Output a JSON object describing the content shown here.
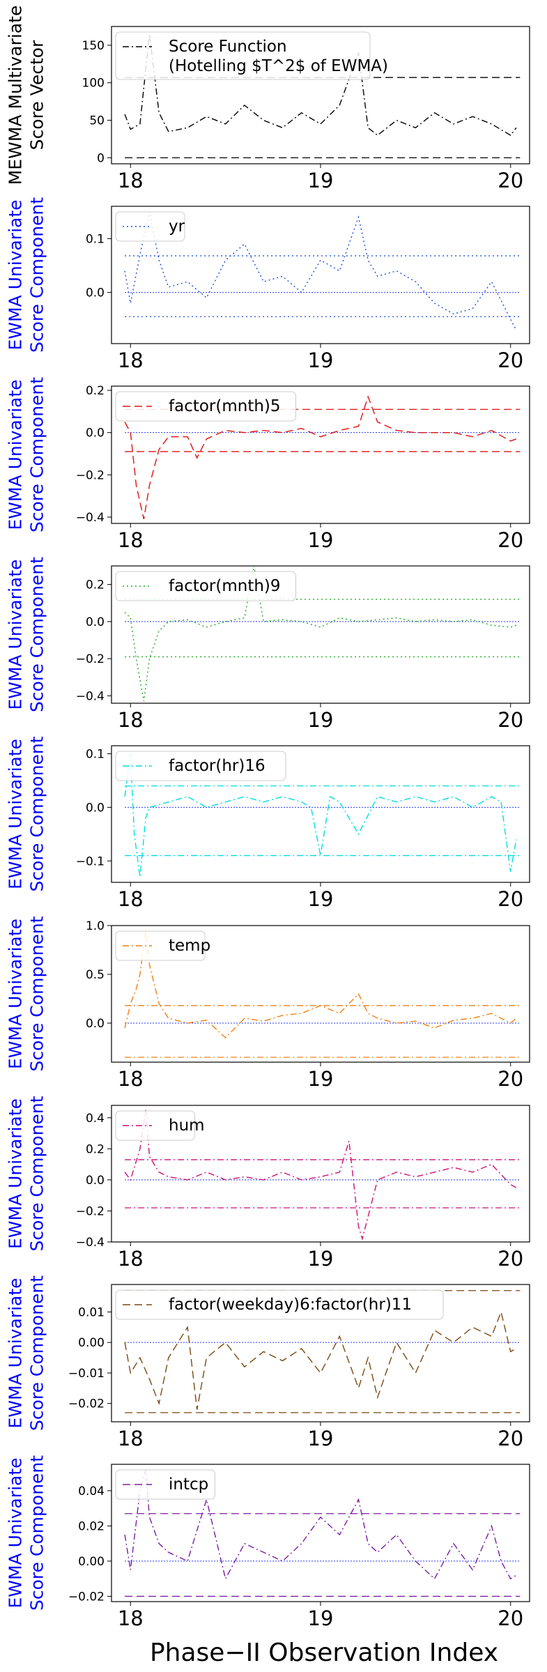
{
  "figure": {
    "xlabel": "Phase-II Observation Index",
    "x_ticks": [
      18,
      19,
      20
    ]
  },
  "chart_data": [
    {
      "type": "line",
      "ylabel": [
        "MEWMA Multivariate",
        "Score Vector"
      ],
      "ylabel_color": "#000000",
      "ylim": [
        -8,
        175
      ],
      "y_ticks": [
        0,
        50,
        100,
        150
      ],
      "y_tick_labels": [
        "0",
        "50",
        "100",
        "150"
      ],
      "legend": {
        "labels": [
          "Score Function",
          "(Hotelling $T^2$ of EWMA)"
        ],
        "placement": "top-left",
        "style": "dashdot"
      },
      "color": "#000000",
      "style": "dashdot",
      "limits": {
        "upper": 107,
        "center": null,
        "lower": 0,
        "style": "dashed"
      },
      "series": {
        "x": [
          17.97,
          18.0,
          18.05,
          18.1,
          18.15,
          18.2,
          18.3,
          18.4,
          18.5,
          18.6,
          18.7,
          18.8,
          18.9,
          19.0,
          19.1,
          19.2,
          19.25,
          19.3,
          19.4,
          19.5,
          19.6,
          19.7,
          19.8,
          19.9,
          20.0,
          20.03
        ],
        "y": [
          58,
          38,
          45,
          165,
          60,
          35,
          40,
          55,
          45,
          70,
          50,
          40,
          60,
          45,
          70,
          140,
          40,
          30,
          50,
          40,
          60,
          45,
          55,
          45,
          30,
          40
        ]
      }
    },
    {
      "type": "line",
      "ylabel": [
        "EWMA Univariate",
        "Score Component"
      ],
      "ylabel_color": "#0000ff",
      "ylim": [
        -0.095,
        0.16
      ],
      "y_ticks": [
        0.0,
        0.1
      ],
      "y_tick_labels": [
        "0.0",
        "0.1"
      ],
      "legend": {
        "labels": [
          "yr"
        ],
        "placement": "top-left",
        "style": "dotted"
      },
      "color": "#1f4fd8",
      "style": "dotted",
      "limits": {
        "upper": 0.068,
        "center": 0.0,
        "lower": -0.045,
        "style": "dotted"
      },
      "series": {
        "x": [
          17.97,
          18.0,
          18.05,
          18.1,
          18.15,
          18.2,
          18.3,
          18.4,
          18.5,
          18.6,
          18.7,
          18.8,
          18.9,
          19.0,
          19.1,
          19.2,
          19.25,
          19.3,
          19.4,
          19.5,
          19.6,
          19.7,
          19.8,
          19.9,
          20.0,
          20.03
        ],
        "y": [
          0.04,
          -0.02,
          0.07,
          0.15,
          0.06,
          0.01,
          0.02,
          -0.01,
          0.06,
          0.09,
          0.02,
          0.03,
          0.0,
          0.06,
          0.04,
          0.14,
          0.06,
          0.03,
          0.04,
          0.02,
          -0.02,
          -0.04,
          -0.03,
          0.02,
          -0.05,
          -0.07
        ]
      }
    },
    {
      "type": "line",
      "ylabel": [
        "EWMA Univariate",
        "Score Component"
      ],
      "ylabel_color": "#0000ff",
      "ylim": [
        -0.43,
        0.22
      ],
      "y_ticks": [
        -0.4,
        -0.2,
        0.0,
        0.2
      ],
      "y_tick_labels": [
        "−0.4",
        "−0.2",
        "0.0",
        "0.2"
      ],
      "legend": {
        "labels": [
          "factor(mnth)5"
        ],
        "placement": "top-left",
        "style": "dashed"
      },
      "color": "#e01010",
      "style": "dashed",
      "limits": {
        "upper": 0.11,
        "center": 0.0,
        "lower": -0.09,
        "style": "dashed"
      },
      "series": {
        "x": [
          17.97,
          18.0,
          18.03,
          18.07,
          18.1,
          18.15,
          18.2,
          18.3,
          18.35,
          18.4,
          18.5,
          18.6,
          18.7,
          18.8,
          18.9,
          19.0,
          19.1,
          19.2,
          19.25,
          19.3,
          19.4,
          19.5,
          19.6,
          19.7,
          19.8,
          19.9,
          20.0,
          20.03
        ],
        "y": [
          0.05,
          0.0,
          -0.25,
          -0.41,
          -0.25,
          -0.08,
          -0.02,
          -0.02,
          -0.12,
          -0.03,
          0.01,
          0.0,
          0.01,
          0.0,
          0.02,
          -0.02,
          0.01,
          0.03,
          0.17,
          0.05,
          0.01,
          0.0,
          0.0,
          0.0,
          -0.02,
          0.01,
          -0.04,
          -0.03
        ]
      }
    },
    {
      "type": "line",
      "ylabel": [
        "EWMA Univariate",
        "Score Component"
      ],
      "ylabel_color": "#0000ff",
      "ylim": [
        -0.44,
        0.3
      ],
      "y_ticks": [
        -0.4,
        -0.2,
        0.0,
        0.2
      ],
      "y_tick_labels": [
        "−0.4",
        "−0.2",
        "0.0",
        "0.2"
      ],
      "legend": {
        "labels": [
          "factor(mnth)9"
        ],
        "placement": "top-left",
        "style": "dotted"
      },
      "color": "#22aa22",
      "style": "dotted",
      "limits": {
        "upper": 0.12,
        "center": 0.0,
        "lower": -0.19,
        "style": "dotted"
      },
      "series": {
        "x": [
          17.97,
          18.0,
          18.03,
          18.07,
          18.1,
          18.15,
          18.2,
          18.3,
          18.4,
          18.5,
          18.6,
          18.65,
          18.7,
          18.8,
          18.9,
          19.0,
          19.1,
          19.2,
          19.3,
          19.4,
          19.5,
          19.6,
          19.7,
          19.8,
          19.9,
          20.0,
          20.03
        ],
        "y": [
          0.05,
          0.02,
          -0.2,
          -0.43,
          -0.2,
          -0.05,
          0.0,
          0.01,
          -0.03,
          0.0,
          0.02,
          0.3,
          0.0,
          0.01,
          0.0,
          -0.03,
          0.02,
          0.0,
          0.01,
          0.02,
          0.0,
          0.01,
          0.0,
          0.01,
          -0.02,
          -0.03,
          -0.02
        ]
      }
    },
    {
      "type": "line",
      "ylabel": [
        "EWMA Univariate",
        "Score Component"
      ],
      "ylabel_color": "#0000ff",
      "ylim": [
        -0.14,
        0.115
      ],
      "y_ticks": [
        -0.1,
        0.0,
        0.1
      ],
      "y_tick_labels": [
        "−0.1",
        "0.0",
        "0.1"
      ],
      "legend": {
        "labels": [
          "factor(hr)16"
        ],
        "placement": "top-left",
        "style": "dashdot"
      },
      "color": "#00dde0",
      "style": "dashdot",
      "limits": {
        "upper": 0.04,
        "center": 0.0,
        "lower": -0.09,
        "style": "dashdot"
      },
      "series": {
        "x": [
          17.97,
          18.0,
          18.02,
          18.05,
          18.08,
          18.1,
          18.2,
          18.3,
          18.4,
          18.5,
          18.6,
          18.7,
          18.8,
          18.9,
          18.95,
          19.0,
          19.05,
          19.1,
          19.2,
          19.3,
          19.4,
          19.5,
          19.6,
          19.7,
          19.8,
          19.9,
          19.95,
          20.0,
          20.03
        ],
        "y": [
          0.02,
          0.1,
          -0.05,
          -0.13,
          -0.02,
          0.0,
          0.01,
          0.02,
          0.0,
          0.01,
          0.02,
          0.01,
          0.02,
          0.01,
          0.0,
          -0.09,
          0.02,
          0.01,
          -0.05,
          0.02,
          0.01,
          0.02,
          0.01,
          0.02,
          0.0,
          0.02,
          0.01,
          -0.12,
          -0.06
        ]
      }
    },
    {
      "type": "line",
      "ylabel": [
        "EWMA Univariate",
        "Score Component"
      ],
      "ylabel_color": "#0000ff",
      "ylim": [
        -0.4,
        1.0
      ],
      "y_ticks": [
        0.0,
        0.5,
        1.0
      ],
      "y_tick_labels": [
        "0.0",
        "0.5",
        "1.0"
      ],
      "legend": {
        "labels": [
          "temp"
        ],
        "placement": "top-left",
        "style": "dashdot"
      },
      "color": "#f07f12",
      "style": "dashdot",
      "limits": {
        "upper": 0.18,
        "center": 0.0,
        "lower": -0.35,
        "style": "dashdot"
      },
      "series": {
        "x": [
          17.97,
          18.0,
          18.03,
          18.05,
          18.08,
          18.1,
          18.15,
          18.2,
          18.3,
          18.4,
          18.5,
          18.6,
          18.7,
          18.8,
          18.9,
          19.0,
          19.1,
          19.2,
          19.25,
          19.3,
          19.4,
          19.5,
          19.6,
          19.7,
          19.8,
          19.9,
          20.0,
          20.03
        ],
        "y": [
          -0.05,
          0.2,
          0.35,
          0.5,
          0.95,
          0.6,
          0.2,
          0.05,
          0.0,
          0.03,
          -0.15,
          0.05,
          0.02,
          0.08,
          0.1,
          0.18,
          0.1,
          0.3,
          0.1,
          0.05,
          0.0,
          0.02,
          -0.05,
          0.03,
          0.05,
          0.1,
          0.0,
          0.05
        ]
      }
    },
    {
      "type": "line",
      "ylabel": [
        "EWMA Univariate",
        "Score Component"
      ],
      "ylabel_color": "#0000ff",
      "ylim": [
        -0.4,
        0.48
      ],
      "y_ticks": [
        -0.4,
        -0.2,
        0.0,
        0.2,
        0.4
      ],
      "y_tick_labels": [
        "−0.4",
        "−0.2",
        "0.0",
        "0.2",
        "0.4"
      ],
      "legend": {
        "labels": [
          "hum"
        ],
        "placement": "top-left",
        "style": "dashdot"
      },
      "color": "#cc1177",
      "style": "dashdot",
      "limits": {
        "upper": 0.13,
        "center": 0.0,
        "lower": -0.18,
        "style": "dashdot"
      },
      "series": {
        "x": [
          17.97,
          18.0,
          18.05,
          18.08,
          18.1,
          18.15,
          18.2,
          18.3,
          18.4,
          18.5,
          18.6,
          18.7,
          18.8,
          18.9,
          19.0,
          19.1,
          19.15,
          19.2,
          19.22,
          19.3,
          19.4,
          19.5,
          19.6,
          19.7,
          19.8,
          19.9,
          20.0,
          20.03
        ],
        "y": [
          0.05,
          0.0,
          0.2,
          0.45,
          0.15,
          0.05,
          0.02,
          0.0,
          0.05,
          0.0,
          0.02,
          0.0,
          0.05,
          0.0,
          0.02,
          0.05,
          0.25,
          -0.3,
          -0.38,
          0.0,
          0.05,
          0.02,
          0.05,
          0.08,
          0.05,
          0.1,
          -0.03,
          -0.05
        ]
      }
    },
    {
      "type": "line",
      "ylabel": [
        "EWMA Univariate",
        "Score Component"
      ],
      "ylabel_color": "#0000ff",
      "ylim": [
        -0.026,
        0.019
      ],
      "y_ticks": [
        -0.02,
        -0.01,
        0.0,
        0.01
      ],
      "y_tick_labels": [
        "−0.02",
        "−0.01",
        "0.00",
        "0.01"
      ],
      "legend": {
        "labels": [
          "factor(weekday)6:factor(hr)11"
        ],
        "placement": "top-left",
        "style": "dashed"
      },
      "color": "#7a4810",
      "style": "dashed",
      "limits": {
        "upper": 0.017,
        "center": 0.0,
        "lower": -0.023,
        "style": "dashed"
      },
      "series": {
        "x": [
          17.97,
          18.0,
          18.05,
          18.1,
          18.15,
          18.2,
          18.3,
          18.35,
          18.4,
          18.5,
          18.6,
          18.7,
          18.8,
          18.9,
          19.0,
          19.1,
          19.2,
          19.25,
          19.3,
          19.4,
          19.5,
          19.6,
          19.7,
          19.8,
          19.9,
          19.95,
          20.0,
          20.03
        ],
        "y": [
          0.0,
          -0.01,
          -0.005,
          -0.012,
          -0.02,
          -0.005,
          0.005,
          -0.022,
          -0.005,
          0.0,
          -0.008,
          -0.003,
          -0.006,
          -0.002,
          -0.01,
          0.002,
          -0.015,
          -0.005,
          -0.018,
          0.0,
          -0.01,
          0.004,
          0.0,
          0.005,
          0.002,
          0.01,
          -0.003,
          -0.002
        ]
      }
    },
    {
      "type": "line",
      "ylabel": [
        "EWMA Univariate",
        "Score Component"
      ],
      "ylabel_color": "#0000ff",
      "ylim": [
        -0.023,
        0.055
      ],
      "y_ticks": [
        -0.02,
        0.0,
        0.02,
        0.04
      ],
      "y_tick_labels": [
        "−0.02",
        "0.00",
        "0.02",
        "0.04"
      ],
      "legend": {
        "labels": [
          "intcp"
        ],
        "placement": "top-left",
        "style": "dashed"
      },
      "color": "#7a1fa2",
      "style": "dashdot",
      "limits": {
        "upper": 0.027,
        "center": 0.0,
        "lower": -0.02,
        "style": "dashed"
      },
      "series": {
        "x": [
          17.97,
          18.0,
          18.05,
          18.08,
          18.1,
          18.15,
          18.2,
          18.3,
          18.4,
          18.5,
          18.6,
          18.7,
          18.8,
          18.9,
          19.0,
          19.1,
          19.2,
          19.25,
          19.3,
          19.4,
          19.5,
          19.6,
          19.7,
          19.8,
          19.9,
          19.95,
          20.0,
          20.03
        ],
        "y": [
          0.015,
          -0.005,
          0.04,
          0.052,
          0.025,
          0.01,
          0.005,
          0.0,
          0.035,
          -0.01,
          0.01,
          0.005,
          0.0,
          0.01,
          0.025,
          0.015,
          0.035,
          0.01,
          0.005,
          0.015,
          0.0,
          -0.01,
          0.01,
          -0.005,
          0.02,
          0.0,
          -0.01,
          -0.008
        ]
      }
    }
  ]
}
